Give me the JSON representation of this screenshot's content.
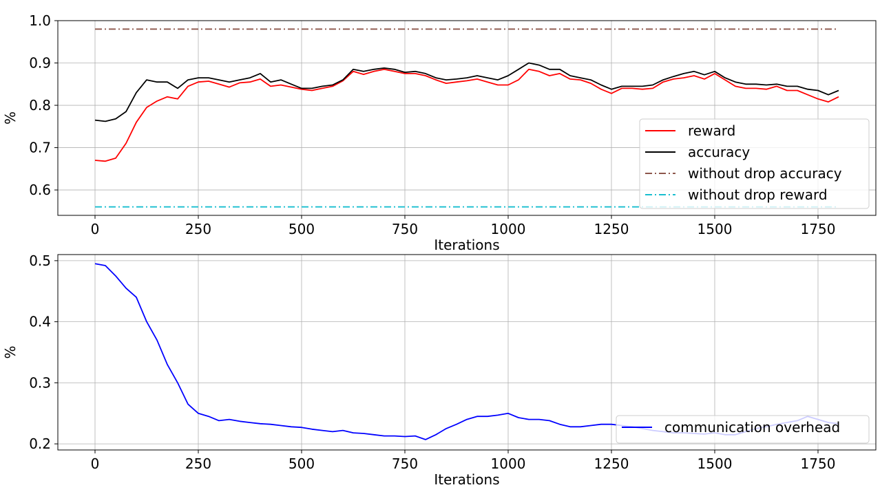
{
  "chart_data": [
    {
      "type": "line",
      "xlabel": "Iterations",
      "ylabel": "%",
      "xlim": [
        -90,
        1890
      ],
      "ylim": [
        0.54,
        1.0
      ],
      "xticks": [
        0,
        250,
        500,
        750,
        1000,
        1250,
        1500,
        1750
      ],
      "yticks": [
        0.6,
        0.7,
        0.8,
        0.9,
        1.0
      ],
      "ytick_labels": [
        "0.6",
        "0.7",
        "0.8",
        "0.9",
        "1.0"
      ],
      "grid": true,
      "legend_position": "lower-right",
      "series": [
        {
          "name": "reward",
          "color": "#ff0000",
          "dash": "solid",
          "x": [
            0,
            25,
            50,
            75,
            100,
            125,
            150,
            175,
            200,
            225,
            250,
            275,
            300,
            325,
            350,
            375,
            400,
            425,
            450,
            475,
            500,
            525,
            550,
            575,
            600,
            625,
            650,
            675,
            700,
            725,
            750,
            775,
            800,
            825,
            850,
            875,
            900,
            925,
            950,
            975,
            1000,
            1025,
            1050,
            1075,
            1100,
            1125,
            1150,
            1175,
            1200,
            1225,
            1250,
            1275,
            1300,
            1325,
            1350,
            1375,
            1400,
            1425,
            1450,
            1475,
            1500,
            1525,
            1550,
            1575,
            1600,
            1625,
            1650,
            1675,
            1700,
            1725,
            1750,
            1775,
            1800
          ],
          "values": [
            0.67,
            0.668,
            0.675,
            0.71,
            0.76,
            0.795,
            0.81,
            0.82,
            0.815,
            0.845,
            0.855,
            0.857,
            0.85,
            0.843,
            0.853,
            0.855,
            0.862,
            0.845,
            0.848,
            0.843,
            0.838,
            0.835,
            0.84,
            0.845,
            0.858,
            0.88,
            0.873,
            0.88,
            0.885,
            0.88,
            0.875,
            0.875,
            0.87,
            0.86,
            0.852,
            0.855,
            0.858,
            0.862,
            0.855,
            0.848,
            0.848,
            0.86,
            0.885,
            0.88,
            0.87,
            0.875,
            0.862,
            0.86,
            0.852,
            0.838,
            0.828,
            0.84,
            0.84,
            0.838,
            0.84,
            0.855,
            0.862,
            0.865,
            0.87,
            0.862,
            0.875,
            0.86,
            0.845,
            0.84,
            0.84,
            0.838,
            0.845,
            0.835,
            0.835,
            0.825,
            0.815,
            0.808,
            0.82
          ]
        },
        {
          "name": "accuracy",
          "color": "#000000",
          "dash": "solid",
          "x": [
            0,
            25,
            50,
            75,
            100,
            125,
            150,
            175,
            200,
            225,
            250,
            275,
            300,
            325,
            350,
            375,
            400,
            425,
            450,
            475,
            500,
            525,
            550,
            575,
            600,
            625,
            650,
            675,
            700,
            725,
            750,
            775,
            800,
            825,
            850,
            875,
            900,
            925,
            950,
            975,
            1000,
            1025,
            1050,
            1075,
            1100,
            1125,
            1150,
            1175,
            1200,
            1225,
            1250,
            1275,
            1300,
            1325,
            1350,
            1375,
            1400,
            1425,
            1450,
            1475,
            1500,
            1525,
            1550,
            1575,
            1600,
            1625,
            1650,
            1675,
            1700,
            1725,
            1750,
            1775,
            1800
          ],
          "values": [
            0.765,
            0.762,
            0.768,
            0.785,
            0.83,
            0.86,
            0.855,
            0.855,
            0.84,
            0.86,
            0.865,
            0.865,
            0.86,
            0.855,
            0.86,
            0.865,
            0.875,
            0.855,
            0.86,
            0.85,
            0.84,
            0.84,
            0.845,
            0.848,
            0.86,
            0.885,
            0.88,
            0.885,
            0.888,
            0.885,
            0.878,
            0.88,
            0.875,
            0.865,
            0.86,
            0.862,
            0.865,
            0.87,
            0.865,
            0.86,
            0.87,
            0.885,
            0.9,
            0.895,
            0.885,
            0.885,
            0.87,
            0.865,
            0.86,
            0.848,
            0.838,
            0.845,
            0.845,
            0.845,
            0.848,
            0.86,
            0.868,
            0.875,
            0.88,
            0.872,
            0.88,
            0.865,
            0.855,
            0.85,
            0.85,
            0.848,
            0.85,
            0.845,
            0.845,
            0.838,
            0.835,
            0.825,
            0.835
          ]
        },
        {
          "name": "without drop accuracy",
          "color": "#8c564b",
          "dash": "dashdot",
          "x": [
            0,
            1800
          ],
          "values": [
            0.98,
            0.98
          ]
        },
        {
          "name": "without drop reward",
          "color": "#17becf",
          "dash": "dashdot",
          "x": [
            0,
            1800
          ],
          "values": [
            0.56,
            0.56
          ]
        }
      ]
    },
    {
      "type": "line",
      "xlabel": "Iterations",
      "ylabel": "%",
      "xlim": [
        -90,
        1890
      ],
      "ylim": [
        0.19,
        0.51
      ],
      "xticks": [
        0,
        250,
        500,
        750,
        1000,
        1250,
        1500,
        1750
      ],
      "yticks": [
        0.2,
        0.3,
        0.4,
        0.5
      ],
      "ytick_labels": [
        "0.2",
        "0.3",
        "0.4",
        "0.5"
      ],
      "grid": true,
      "legend_position": "lower-right",
      "series": [
        {
          "name": "communication overhead",
          "color": "#0000ff",
          "dash": "solid",
          "x": [
            0,
            25,
            50,
            75,
            100,
            125,
            150,
            175,
            200,
            225,
            250,
            275,
            300,
            325,
            350,
            375,
            400,
            425,
            450,
            475,
            500,
            525,
            550,
            575,
            600,
            625,
            650,
            675,
            700,
            725,
            750,
            775,
            800,
            825,
            850,
            875,
            900,
            925,
            950,
            975,
            1000,
            1025,
            1050,
            1075,
            1100,
            1125,
            1150,
            1175,
            1200,
            1225,
            1250,
            1275,
            1300,
            1325,
            1350,
            1375,
            1400,
            1425,
            1450,
            1475,
            1500,
            1525,
            1550,
            1575,
            1600,
            1625,
            1650,
            1675,
            1700,
            1725,
            1750,
            1775,
            1800
          ],
          "values": [
            0.495,
            0.492,
            0.475,
            0.455,
            0.44,
            0.4,
            0.37,
            0.33,
            0.3,
            0.265,
            0.25,
            0.245,
            0.238,
            0.24,
            0.237,
            0.235,
            0.233,
            0.232,
            0.23,
            0.228,
            0.227,
            0.224,
            0.222,
            0.22,
            0.222,
            0.218,
            0.217,
            0.215,
            0.213,
            0.213,
            0.212,
            0.213,
            0.207,
            0.215,
            0.225,
            0.232,
            0.24,
            0.245,
            0.245,
            0.247,
            0.25,
            0.243,
            0.24,
            0.24,
            0.238,
            0.232,
            0.228,
            0.228,
            0.23,
            0.232,
            0.232,
            0.23,
            0.228,
            0.225,
            0.222,
            0.22,
            0.218,
            0.218,
            0.217,
            0.216,
            0.218,
            0.215,
            0.215,
            0.22,
            0.225,
            0.228,
            0.232,
            0.235,
            0.238,
            0.245,
            0.24,
            0.235,
            0.233
          ]
        }
      ]
    }
  ]
}
